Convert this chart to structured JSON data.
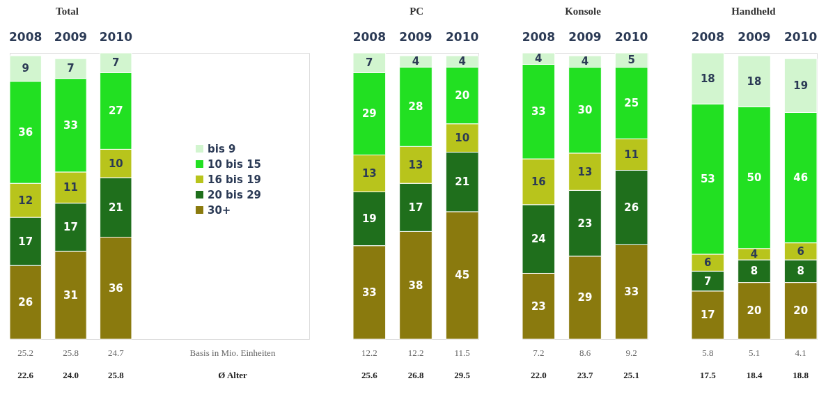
{
  "chart_data": [
    {
      "type": "bar",
      "title": "Total",
      "categories": [
        "2008",
        "2009",
        "2010"
      ],
      "stacked": true,
      "data_labels": true,
      "legend": "right",
      "series": [
        {
          "name": "30+",
          "color": "#8a7a0e",
          "values": [
            26,
            31,
            36
          ]
        },
        {
          "name": "20 bis 29",
          "color": "#1f6f1c",
          "values": [
            17,
            17,
            21
          ]
        },
        {
          "name": "16 bis 19",
          "color": "#b8c41c",
          "values": [
            12,
            11,
            10
          ]
        },
        {
          "name": "10 bis 15",
          "color": "#22e022",
          "values": [
            36,
            33,
            27
          ]
        },
        {
          "name": "bis 9",
          "color": "#d2f5cf",
          "values": [
            9,
            7,
            7
          ]
        }
      ],
      "annotations": [
        "25.2",
        "25.8",
        "24.7",
        "Basis in Mio. Einheiten",
        "22.6",
        "24.0",
        "25.8",
        "Ø Alter"
      ]
    },
    {
      "type": "bar",
      "title": "PC",
      "categories": [
        "2008",
        "2009",
        "2010"
      ],
      "stacked": true,
      "data_labels": true,
      "series": [
        {
          "color": "#8a7a0e",
          "values": [
            33,
            38,
            45
          ]
        },
        {
          "color": "#1f6f1c",
          "values": [
            19,
            17,
            21
          ]
        },
        {
          "color": "#b8c41c",
          "values": [
            13,
            13,
            10
          ]
        },
        {
          "color": "#22e022",
          "values": [
            29,
            28,
            20
          ]
        },
        {
          "color": "#d2f5cf",
          "values": [
            7,
            4,
            4
          ]
        }
      ],
      "annotations": [
        "12.2",
        "12.2",
        "11.5",
        "25.6",
        "26.8",
        "29.5"
      ]
    },
    {
      "type": "bar",
      "title": "Konsole",
      "categories": [
        "2008",
        "2009",
        "2010"
      ],
      "stacked": true,
      "data_labels": true,
      "series": [
        {
          "color": "#8a7a0e",
          "values": [
            23,
            29,
            33
          ]
        },
        {
          "color": "#1f6f1c",
          "values": [
            24,
            23,
            26
          ]
        },
        {
          "color": "#b8c41c",
          "values": [
            16,
            13,
            11
          ]
        },
        {
          "color": "#22e022",
          "values": [
            33,
            30,
            25
          ]
        },
        {
          "color": "#d2f5cf",
          "values": [
            4,
            4,
            5
          ]
        }
      ],
      "annotations": [
        "7.2",
        "8.6",
        "9.2",
        "22.0",
        "23.7",
        "25.1"
      ]
    },
    {
      "type": "bar",
      "title": "Handheld",
      "categories": [
        "2008",
        "2009",
        "2010"
      ],
      "stacked": true,
      "data_labels": true,
      "series": [
        {
          "color": "#8a7a0e",
          "values": [
            17,
            20,
            20
          ]
        },
        {
          "color": "#1f6f1c",
          "values": [
            7,
            8,
            8
          ]
        },
        {
          "color": "#b8c41c",
          "values": [
            6,
            4,
            6
          ]
        },
        {
          "color": "#22e022",
          "values": [
            53,
            50,
            46
          ]
        },
        {
          "color": "#d2f5cf",
          "values": [
            18,
            18,
            19
          ]
        }
      ],
      "annotations": [
        "5.8",
        "5.1",
        "4.1",
        "17.5",
        "18.4",
        "18.8"
      ]
    }
  ]
}
